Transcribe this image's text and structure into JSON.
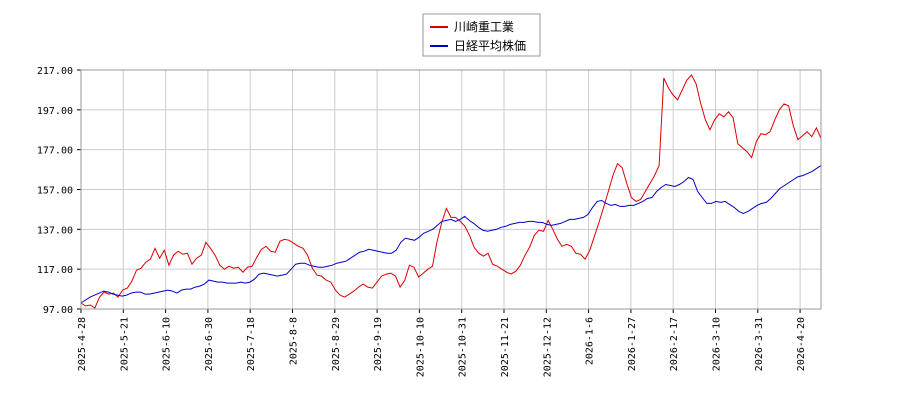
{
  "chart_data": {
    "type": "line",
    "title": "",
    "xlabel": "",
    "ylabel": "",
    "ylim": [
      97.0,
      217.0
    ],
    "yticks": [
      "217.00",
      "197.00",
      "177.00",
      "157.00",
      "137.00",
      "117.00",
      "97.00"
    ],
    "xticks": [
      "2025-4-28",
      "2025-5-21",
      "2025-6-10",
      "2025-6-30",
      "2025-7-18",
      "2025-8-8",
      "2025-8-29",
      "2025-9-19",
      "2025-10-10",
      "2025-10-31",
      "2025-11-21",
      "2025-12-12",
      "2026-1-6",
      "2026-1-27",
      "2026-2-17",
      "2026-3-10",
      "2026-3-31",
      "2026-4-20"
    ],
    "grid": true,
    "legend_position": "top-center",
    "series": [
      {
        "name": "川崎重工業",
        "color": "#dd0000",
        "values": [
          100.0,
          98.5,
          99.0,
          97.5,
          103.0,
          105.5,
          104.5,
          105.0,
          103.0,
          106.5,
          107.5,
          111.0,
          116.5,
          117.5,
          120.5,
          122.0,
          127.5,
          122.5,
          126.5,
          119.0,
          124.0,
          126.0,
          124.5,
          125.0,
          119.5,
          122.5,
          124.0,
          130.5,
          127.5,
          124.0,
          119.0,
          117.0,
          118.5,
          117.5,
          118.0,
          115.5,
          118.0,
          118.5,
          123.0,
          127.0,
          128.5,
          126.0,
          125.5,
          131.0,
          132.0,
          131.5,
          130.0,
          128.5,
          127.5,
          124.0,
          117.5,
          114.0,
          113.5,
          111.5,
          110.5,
          106.5,
          104.0,
          103.0,
          104.5,
          106.0,
          108.0,
          109.5,
          108.0,
          107.5,
          110.5,
          113.5,
          114.5,
          115.0,
          113.5,
          108.0,
          111.5,
          119.0,
          118.0,
          113.0,
          115.0,
          117.0,
          118.5,
          131.0,
          140.5,
          147.5,
          143.0,
          143.0,
          141.0,
          138.5,
          134.0,
          128.0,
          125.0,
          123.5,
          125.0,
          119.5,
          118.5,
          117.0,
          115.5,
          114.5,
          116.0,
          119.0,
          124.0,
          128.0,
          134.0,
          136.5,
          136.0,
          141.5,
          137.0,
          132.0,
          128.5,
          129.5,
          128.5,
          125.0,
          124.5,
          122.0,
          126.5,
          133.5,
          140.5,
          148.0,
          156.0,
          164.0,
          170.0,
          168.0,
          160.0,
          153.0,
          151.0,
          152.0,
          156.0,
          160.0,
          164.0,
          169.0,
          213.0,
          208.0,
          204.5,
          202.0,
          207.0,
          212.0,
          214.5,
          210.0,
          200.0,
          192.0,
          187.0,
          192.0,
          195.0,
          193.5,
          196.0,
          193.0,
          180.0,
          178.0,
          176.0,
          173.0,
          181.0,
          185.0,
          184.5,
          186.0,
          192.0,
          197.0,
          200.0,
          199.0,
          189.0,
          182.0,
          184.0,
          186.0,
          183.5,
          188.0,
          182.5
        ]
      },
      {
        "name": "日経平均株価",
        "color": "#0000cc",
        "values": [
          100.0,
          101.5,
          103.0,
          104.0,
          105.0,
          106.0,
          105.5,
          104.5,
          104.0,
          103.5,
          104.0,
          105.0,
          105.5,
          105.5,
          104.5,
          104.5,
          105.0,
          105.5,
          106.0,
          106.5,
          106.0,
          105.0,
          106.5,
          107.0,
          107.0,
          108.0,
          108.5,
          109.5,
          111.5,
          111.0,
          110.5,
          110.5,
          110.0,
          110.0,
          110.0,
          110.5,
          110.0,
          110.5,
          112.0,
          114.5,
          115.0,
          114.5,
          114.0,
          113.5,
          114.0,
          114.5,
          117.0,
          119.5,
          120.0,
          120.0,
          119.0,
          118.5,
          118.0,
          118.0,
          118.5,
          119.0,
          120.0,
          120.5,
          121.0,
          122.5,
          124.0,
          125.5,
          126.0,
          127.0,
          126.5,
          126.0,
          125.5,
          125.0,
          125.0,
          126.5,
          130.5,
          132.5,
          132.0,
          131.5,
          133.0,
          135.0,
          136.0,
          137.0,
          139.0,
          141.0,
          141.5,
          142.0,
          141.0,
          142.0,
          143.5,
          141.5,
          140.0,
          138.0,
          136.5,
          136.0,
          136.5,
          137.0,
          138.0,
          138.5,
          139.5,
          140.0,
          140.5,
          140.5,
          141.0,
          141.0,
          140.5,
          140.5,
          139.5,
          139.0,
          139.5,
          140.0,
          141.0,
          142.0,
          142.0,
          142.5,
          143.0,
          144.5,
          148.0,
          151.0,
          151.5,
          150.0,
          149.0,
          149.5,
          148.5,
          148.5,
          149.0,
          149.0,
          150.0,
          151.0,
          152.5,
          153.0,
          156.0,
          158.0,
          159.5,
          159.0,
          158.5,
          159.5,
          161.0,
          163.0,
          162.0,
          156.0,
          153.0,
          150.0,
          150.0,
          151.0,
          150.5,
          151.0,
          149.5,
          148.0,
          146.0,
          145.0,
          146.0,
          147.5,
          149.0,
          150.0,
          150.5,
          152.5,
          155.0,
          157.5,
          159.0,
          160.5,
          162.0,
          163.5,
          164.0,
          165.0,
          166.0,
          167.5,
          169.0
        ]
      }
    ]
  }
}
